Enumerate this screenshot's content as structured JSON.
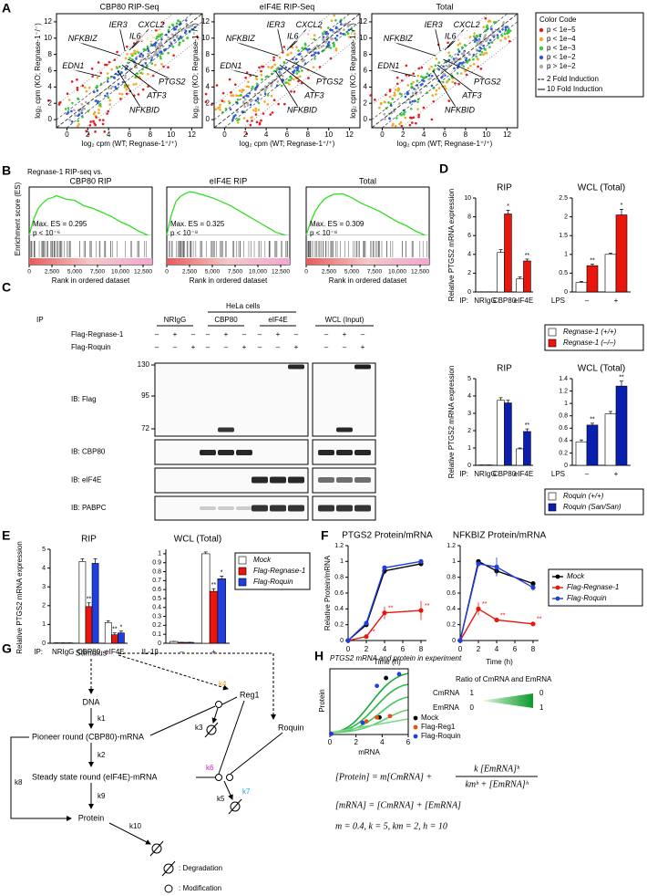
{
  "panel_labels": [
    "A",
    "B",
    "C",
    "D",
    "E",
    "F",
    "G",
    "H"
  ],
  "panel_a": {
    "plots": [
      {
        "title": "CBP80 RIP-Seq"
      },
      {
        "title": "eIF4E RIP-Seq"
      },
      {
        "title": "Total"
      }
    ],
    "x_label": "log₂ cpm (WT; Regnase-1⁺/⁺)",
    "y_label": "log₂ cpm (KO; Regnase-1⁻/⁻)",
    "xlim": [
      -1,
      13
    ],
    "ylim": [
      -1,
      13
    ],
    "xticks": [
      0,
      2,
      4,
      6,
      8,
      10,
      12
    ],
    "yticks": [
      0,
      2,
      4,
      6,
      8,
      10,
      12
    ],
    "genes": [
      "IER3",
      "CXCL2",
      "IL6",
      "NFKBIZ",
      "EDN1",
      "PTGS2",
      "ATF3",
      "NFKBID"
    ],
    "legend": {
      "title": "Color Code",
      "items": [
        {
          "label": "p < 1e−5",
          "color": "#e31a1c"
        },
        {
          "label": "p < 1e−4",
          "color": "#f5a623"
        },
        {
          "label": "p < 1e−3",
          "color": "#33cc33"
        },
        {
          "label": "p < 1e−2",
          "color": "#2b5cd6"
        },
        {
          "label": "p > 1e−2",
          "color": "#aaaaaa"
        }
      ],
      "lines": [
        "2 Fold Induction",
        "10 Fold Induction"
      ]
    }
  },
  "panel_b": {
    "heading": "Regnase-1 RIP-seq vs.",
    "y_label": "Enrichment score (ES)",
    "x_label": "Rank in ordered dataset",
    "xlim": [
      0,
      13500
    ],
    "ylim": [
      -0.03,
      0.36
    ],
    "xticks": [
      0,
      {
        "value": 2500,
        "label": "2,500"
      },
      {
        "value": 5000,
        "label": "5,000"
      },
      {
        "value": 7500,
        "label": "7,500"
      },
      {
        "value": 10000,
        "label": "10,000"
      },
      {
        "value": 12500,
        "label": "12,500"
      }
    ],
    "plots": [
      {
        "title": "CBP80 RIP",
        "max_es": "Max. ES = 0.295",
        "p": "p < 10⁻⁶",
        "x": [
          0,
          500,
          1000,
          1500,
          2000,
          2500,
          3000,
          4000,
          5000,
          6000,
          7000,
          8000,
          9000,
          10000,
          11000,
          12000,
          13000
        ],
        "es": [
          0,
          0.12,
          0.2,
          0.24,
          0.27,
          0.28,
          0.295,
          0.27,
          0.26,
          0.22,
          0.2,
          0.17,
          0.14,
          0.1,
          0.07,
          0.03,
          0
        ]
      },
      {
        "title": "eIF4E RIP",
        "max_es": "Max. ES = 0.325",
        "p": "p < 10⁻⁸",
        "x": [
          0,
          500,
          1000,
          1500,
          2000,
          2500,
          3000,
          4000,
          5000,
          6000,
          7000,
          8000,
          9000,
          10000,
          11000,
          12000,
          13000
        ],
        "es": [
          0,
          0.15,
          0.25,
          0.29,
          0.31,
          0.325,
          0.32,
          0.3,
          0.28,
          0.25,
          0.22,
          0.18,
          0.14,
          0.1,
          0.06,
          0.02,
          0
        ]
      },
      {
        "title": "Total",
        "max_es": "Max. ES = 0.309",
        "p": "p < 10⁻⁸",
        "x": [
          0,
          500,
          1000,
          1500,
          2000,
          2500,
          3000,
          4000,
          5000,
          6000,
          7000,
          8000,
          9000,
          10000,
          11000,
          12000,
          13000
        ],
        "es": [
          0,
          0.1,
          0.18,
          0.23,
          0.27,
          0.29,
          0.305,
          0.309,
          0.28,
          0.24,
          0.21,
          0.18,
          0.14,
          0.1,
          0.07,
          0.03,
          0
        ]
      }
    ]
  },
  "panel_c": {
    "ip": "IP",
    "cells": "HeLa cells",
    "groups": [
      "NRIgG",
      "CBP80",
      "eIF4E",
      "WCL (Input)"
    ],
    "rows": [
      {
        "label": "Flag-Regnase-1",
        "marks": [
          "–",
          "+",
          "–",
          "–",
          "+",
          "–",
          "–",
          "+",
          "–",
          "–",
          "+",
          "–"
        ]
      },
      {
        "label": "Flag-Roquin",
        "marks": [
          "–",
          "–",
          "+",
          "–",
          "–",
          "+",
          "–",
          "–",
          "+",
          "–",
          "–",
          "+"
        ]
      }
    ],
    "markers": [
      130,
      95,
      72
    ],
    "blots": [
      "IB: Flag",
      "IB: CBP80",
      "IB: eIF4E",
      "IB: PABPC"
    ]
  },
  "panel_d": {
    "y_label": "Relative PTGS2 mRNA expression",
    "groups": [
      {
        "legend": [
          {
            "name": "Regnase-1 (+/+)",
            "color": "#ffffff"
          },
          {
            "name": "Regnase-1 (–/–)",
            "color": "#e8160c"
          }
        ],
        "charts": [
          {
            "type": "bar",
            "title": "RIP",
            "axis_prefix": "IP:",
            "categories": [
              "NRIgG",
              "CBP80",
              "eIF4E"
            ],
            "ylim": [
              0,
              10
            ],
            "yticks": [
              0,
              2,
              4,
              6,
              8,
              10
            ],
            "series": [
              {
                "values": [
                  0.02,
                  4.2,
                  1.4
                ],
                "errors": [
                  0,
                  0.3,
                  0.2
                ]
              },
              {
                "values": [
                  0.02,
                  8.3,
                  3.3
                ],
                "errors": [
                  0,
                  0.4,
                  0.2
                ],
                "stars": [
                  null,
                  "*",
                  "**"
                ]
              }
            ]
          },
          {
            "type": "bar",
            "title": "WCL (Total)",
            "axis_prefix": "LPS",
            "categories": [
              "–",
              "+"
            ],
            "ylim": [
              0,
              2.5
            ],
            "yticks": [
              0,
              0.5,
              1,
              1.5,
              2,
              2.5
            ],
            "series": [
              {
                "values": [
                  0.25,
                  1.0
                ],
                "errors": [
                  0.03,
                  0.03
                ]
              },
              {
                "values": [
                  0.7,
                  2.05
                ],
                "errors": [
                  0.04,
                  0.15
                ],
                "stars": [
                  "**",
                  "*"
                ]
              }
            ]
          }
        ]
      },
      {
        "legend": [
          {
            "name": "Roquin (+/+)",
            "color": "#ffffff"
          },
          {
            "name": "Roquin (San/San)",
            "color": "#0a1fb0"
          }
        ],
        "charts": [
          {
            "type": "bar",
            "title": "RIP",
            "axis_prefix": "IP:",
            "categories": [
              "NRIgG",
              "CBP80",
              "eIF4E"
            ],
            "ylim": [
              0,
              5
            ],
            "yticks": [
              0,
              1,
              2,
              3,
              4,
              5
            ],
            "series": [
              {
                "values": [
                  0.02,
                  3.75,
                  0.95
                ],
                "errors": [
                  0,
                  0.15,
                  0.05
                ]
              },
              {
                "values": [
                  0.02,
                  3.6,
                  1.95
                ],
                "errors": [
                  0,
                  0.15,
                  0.15
                ],
                "stars": [
                  null,
                  null,
                  "**"
                ]
              }
            ]
          },
          {
            "type": "bar",
            "title": "WCL (Total)",
            "axis_prefix": "LPS",
            "categories": [
              "–",
              "+"
            ],
            "ylim": [
              0,
              1.4
            ],
            "yticks": [
              0,
              0.2,
              0.4,
              0.6,
              0.8,
              1,
              1.2,
              1.4
            ],
            "series": [
              {
                "values": [
                  0.38,
                  0.83
                ],
                "errors": [
                  0.03,
                  0.04
                ]
              },
              {
                "values": [
                  0.65,
                  1.28
                ],
                "errors": [
                  0.03,
                  0.08
                ],
                "stars": [
                  "**",
                  "**"
                ]
              }
            ]
          }
        ]
      }
    ]
  },
  "panel_e": {
    "y_label": "Relative PTGS2 mRNA expression",
    "legend": [
      {
        "name": "Mock",
        "color": "#ffffff"
      },
      {
        "name": "Flag-Regnase-1",
        "color": "#e8160c"
      },
      {
        "name": "Flag-Roquin",
        "color": "#1f3fe0"
      }
    ],
    "charts": [
      {
        "type": "bar",
        "title": "RIP",
        "axis_prefix": "IP:",
        "categories": [
          "NRIgG",
          "CBP80",
          "eIF4E"
        ],
        "ylim": [
          0,
          5
        ],
        "yticks": [
          0,
          1,
          2,
          3,
          4,
          5
        ],
        "series": [
          {
            "values": [
              0.02,
              4.35,
              1.1
            ],
            "errors": [
              0,
              0.15,
              0.1
            ]
          },
          {
            "values": [
              0.02,
              1.95,
              0.45
            ],
            "errors": [
              0,
              0.2,
              0.1
            ],
            "stars": [
              null,
              "**",
              "**"
            ]
          },
          {
            "values": [
              0.02,
              4.25,
              0.55
            ],
            "errors": [
              0,
              0.25,
              0.1
            ],
            "stars": [
              null,
              null,
              "*"
            ]
          }
        ]
      },
      {
        "type": "bar",
        "title": "WCL (Total)",
        "axis_prefix": "IL-1β",
        "categories": [
          "–",
          "+"
        ],
        "ylim": [
          0,
          1.05
        ],
        "yticks": [
          0,
          0.1,
          0.2,
          0.3,
          0.4,
          0.5,
          0.6,
          0.7,
          0.8,
          0.9,
          1
        ],
        "series": [
          {
            "values": [
              0.02,
              1.0
            ],
            "errors": [
              0,
              0.02
            ]
          },
          {
            "values": [
              0.01,
              0.58
            ],
            "errors": [
              0,
              0.03
            ],
            "stars": [
              null,
              "**"
            ]
          },
          {
            "values": [
              0.01,
              0.72
            ],
            "errors": [
              0,
              0.03
            ],
            "stars": [
              null,
              "*"
            ]
          }
        ]
      }
    ]
  },
  "panel_f": {
    "y_label": "Relative Protein/mRNA",
    "x_label": "Time (h)",
    "legend": [
      {
        "name": "Mock",
        "color": "#000000"
      },
      {
        "name": "Flag-Regnase-1",
        "color": "#e8160c"
      },
      {
        "name": "Flag-Roquin",
        "color": "#1f3fe0"
      }
    ],
    "charts": [
      {
        "type": "line",
        "title": "PTGS2 Protein/mRNA",
        "x": [
          0,
          2,
          4,
          8
        ],
        "xlim": [
          0,
          8.6
        ],
        "xticks": [
          0,
          2,
          4,
          6,
          8
        ],
        "ylim": [
          0,
          1.2
        ],
        "yticks": [
          0,
          0.2,
          0.4,
          0.6,
          0.8,
          1,
          1.2
        ],
        "series": [
          {
            "values": [
              0,
              0.2,
              0.88,
              0.97
            ],
            "errors": [
              0,
              0.03,
              0.04,
              0.02
            ]
          },
          {
            "values": [
              0,
              0.05,
              0.35,
              0.38
            ],
            "errors": [
              0,
              0.02,
              0.08,
              0.12
            ],
            "stars": [
              null,
              "**",
              "**",
              "**"
            ]
          },
          {
            "values": [
              0,
              0.22,
              0.92,
              1.0
            ],
            "errors": [
              0,
              0.03,
              0.03,
              0.02
            ]
          }
        ]
      },
      {
        "type": "line",
        "title": "NFKBIZ Protein/mRNA",
        "x": [
          0,
          2,
          4,
          8
        ],
        "xlim": [
          0,
          8.6
        ],
        "xticks": [
          0,
          2,
          4,
          6,
          8
        ],
        "ylim": [
          0,
          1.2
        ],
        "yticks": [
          0,
          0.2,
          0.4,
          0.6,
          0.8,
          1,
          1.2
        ],
        "series": [
          {
            "values": [
              0,
              1.0,
              0.88,
              0.72
            ],
            "errors": [
              0,
              0.02,
              0.05,
              0.03
            ]
          },
          {
            "values": [
              0,
              0.4,
              0.26,
              0.21
            ],
            "errors": [
              0,
              0.08,
              0.02,
              0.02
            ],
            "stars": [
              null,
              "**",
              "**",
              "**"
            ]
          },
          {
            "values": [
              0,
              0.97,
              0.93,
              0.67
            ],
            "errors": [
              0,
              0.03,
              0.12,
              0.04
            ]
          }
        ]
      }
    ]
  },
  "panel_g": {
    "stimulus": "Stimulus",
    "dna": "DNA",
    "pioneer": "Pioneer round (CBP80)-mRNA",
    "steady": "Steady state round (eIF4E)-mRNA",
    "protein": "Protein",
    "reg1": "Reg1",
    "roquin": "Roquin",
    "rates": [
      "k1",
      "k2",
      "k3",
      "k4",
      "k5",
      "k6",
      "k7",
      "k8",
      "k9",
      "k10"
    ],
    "legend": [
      ": Degradation",
      ": Modification"
    ]
  },
  "panel_h": {
    "type": "scatter",
    "title": "PTGS2 mRNA and protein in experiment",
    "y_label": "Protein",
    "x_label": "mRNA",
    "xlim": [
      0,
      6
    ],
    "xticks": [
      0,
      2,
      4,
      6
    ],
    "ylim": [
      0,
      5
    ],
    "ratio_title": "Ratio of CmRNA and EmRNA",
    "ratio_rows": [
      {
        "name": "CmRNA",
        "from": 1,
        "to": 0
      },
      {
        "name": "EmRNA",
        "from": 0,
        "to": 1
      }
    ],
    "series": [
      {
        "name": "Mock",
        "color": "#000000",
        "x": [
          0.1,
          3.8,
          4.3
        ],
        "y": [
          0.05,
          1.3,
          4.3
        ]
      },
      {
        "name": "Flag-Reg1",
        "color": "#e8500c",
        "x": [
          0.1,
          2.8,
          3.6,
          4.6
        ],
        "y": [
          0.05,
          1.0,
          1.3,
          1.4
        ]
      },
      {
        "name": "Flag-Roquin",
        "color": "#1f3fe0",
        "x": [
          0.1,
          2.5,
          3.6,
          5.3
        ],
        "y": [
          0.05,
          0.9,
          3.7,
          4.6
        ]
      }
    ],
    "equations": {
      "protein_lhs": "[Protein] = m[CmRNA] +",
      "numerator": "k [EmRNA]ʰ",
      "denominator": "kmʰ + [EmRNA]ʰ",
      "mrna": "[mRNA] = [CmRNA] + [EmRNA]",
      "parameters": "m = 0.4, k = 5, km = 2, h = 10"
    }
  }
}
